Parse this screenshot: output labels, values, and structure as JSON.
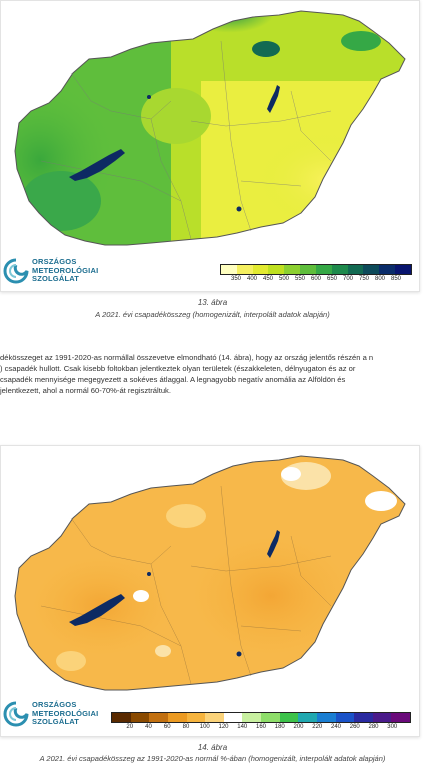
{
  "map1": {
    "figure_number": "13. ábra",
    "caption": "A 2021. évi csapadékösszeg (homogenizált, interpolált adatok alapján)",
    "legend_ticks": [
      "350",
      "400",
      "450",
      "500",
      "550",
      "600",
      "650",
      "700",
      "750",
      "800",
      "850"
    ],
    "legend_colors": [
      "#ffffc0",
      "#f5f060",
      "#e2ea30",
      "#bfe020",
      "#8cd030",
      "#5fbe3c",
      "#35a846",
      "#1e8a4c",
      "#126a52",
      "#0d4a5a",
      "#0a2c6a",
      "#08146e"
    ]
  },
  "paragraph": {
    "lines": [
      "dékösszeget az 1991-2020-as normállal összevetve elmondható (14. ábra), hogy az ország jelentős részén a n",
      ") csapadék hullott. Csak kisebb foltokban jelentkeztek olyan területek (északkeleten, délnyugaton és az or",
      "csapadék mennyisége megegyezett a sokéves átlaggal. A legnagyobb negatív anomália az Alföldön és",
      "jelentkezett, ahol a normál 60-70%-át regisztráltuk."
    ]
  },
  "map2": {
    "figure_number": "14. ábra",
    "caption": "A 2021. évi csapadékösszeg az 1991-2020-as normál %-ában (homogenizált, interpolált adatok alapján)",
    "legend_ticks": [
      "20",
      "40",
      "60",
      "80",
      "100",
      "120",
      "140",
      "160",
      "180",
      "200",
      "220",
      "240",
      "260",
      "280",
      "300"
    ],
    "legend_colors": [
      "#5a2a00",
      "#8a4a00",
      "#c27010",
      "#eb9a22",
      "#f6b43e",
      "#fbd37a",
      "#ffffff",
      "#c8f0a0",
      "#8ede6a",
      "#3cc24a",
      "#20a8b0",
      "#1a7ed2",
      "#1a52c8",
      "#2a2aa0",
      "#4a1a8a",
      "#6a0a7a"
    ]
  },
  "logo": {
    "line1": "ORSZÁGOS",
    "line2": "METEOROLÓGIAI",
    "line3": "SZOLGÁLAT",
    "icon": "omsz-logo-icon"
  }
}
